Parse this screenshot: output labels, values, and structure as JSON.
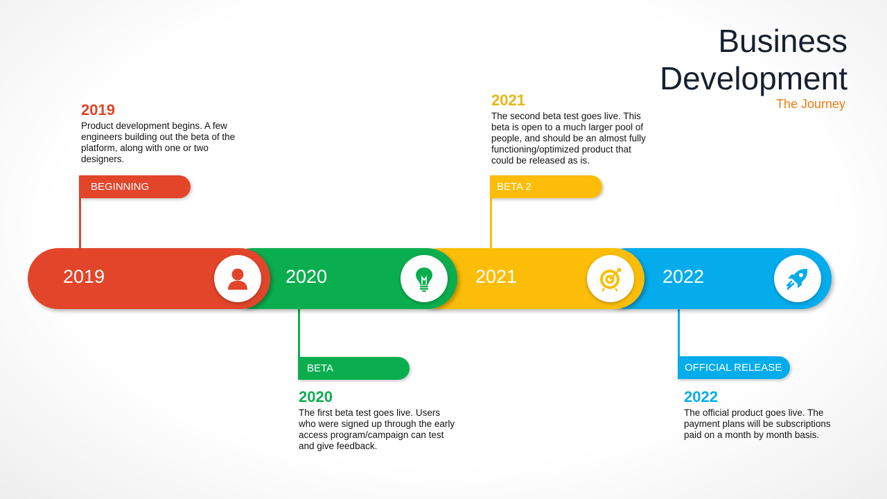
{
  "header": {
    "title_line1": "Business",
    "title_line2": "Development",
    "subtitle": "The Journey"
  },
  "colors": {
    "red": "#e2452a",
    "green": "#0bae4e",
    "yellow": "#fbbd08",
    "blue": "#04acec",
    "title": "#16202e",
    "subtitle": "#f07a10"
  },
  "timeline": [
    {
      "year": "2019",
      "icon": "person-icon"
    },
    {
      "year": "2020",
      "icon": "lightbulb-icon"
    },
    {
      "year": "2021",
      "icon": "target-icon"
    },
    {
      "year": "2022",
      "icon": "rocket-icon"
    }
  ],
  "milestones": [
    {
      "flag": "BEGINNING",
      "year": "2019",
      "text": "Product development begins. A few engineers building out the beta of the platform, along with one or two designers."
    },
    {
      "flag": "BETA",
      "year": "2020",
      "text": "The first beta test goes live. Users who were signed up through the early access program/campaign can test and give feedback."
    },
    {
      "flag": "BETA 2",
      "year": "2021",
      "text": "The second beta test goes live. This beta is open to a much larger pool of people, and should be an almost fully functioning/optimized product that could be released as is."
    },
    {
      "flag": "OFFICIAL RELEASE",
      "year": "2022",
      "text": "The official product goes live. The payment plans will be subscriptions paid on a month by month basis."
    }
  ]
}
